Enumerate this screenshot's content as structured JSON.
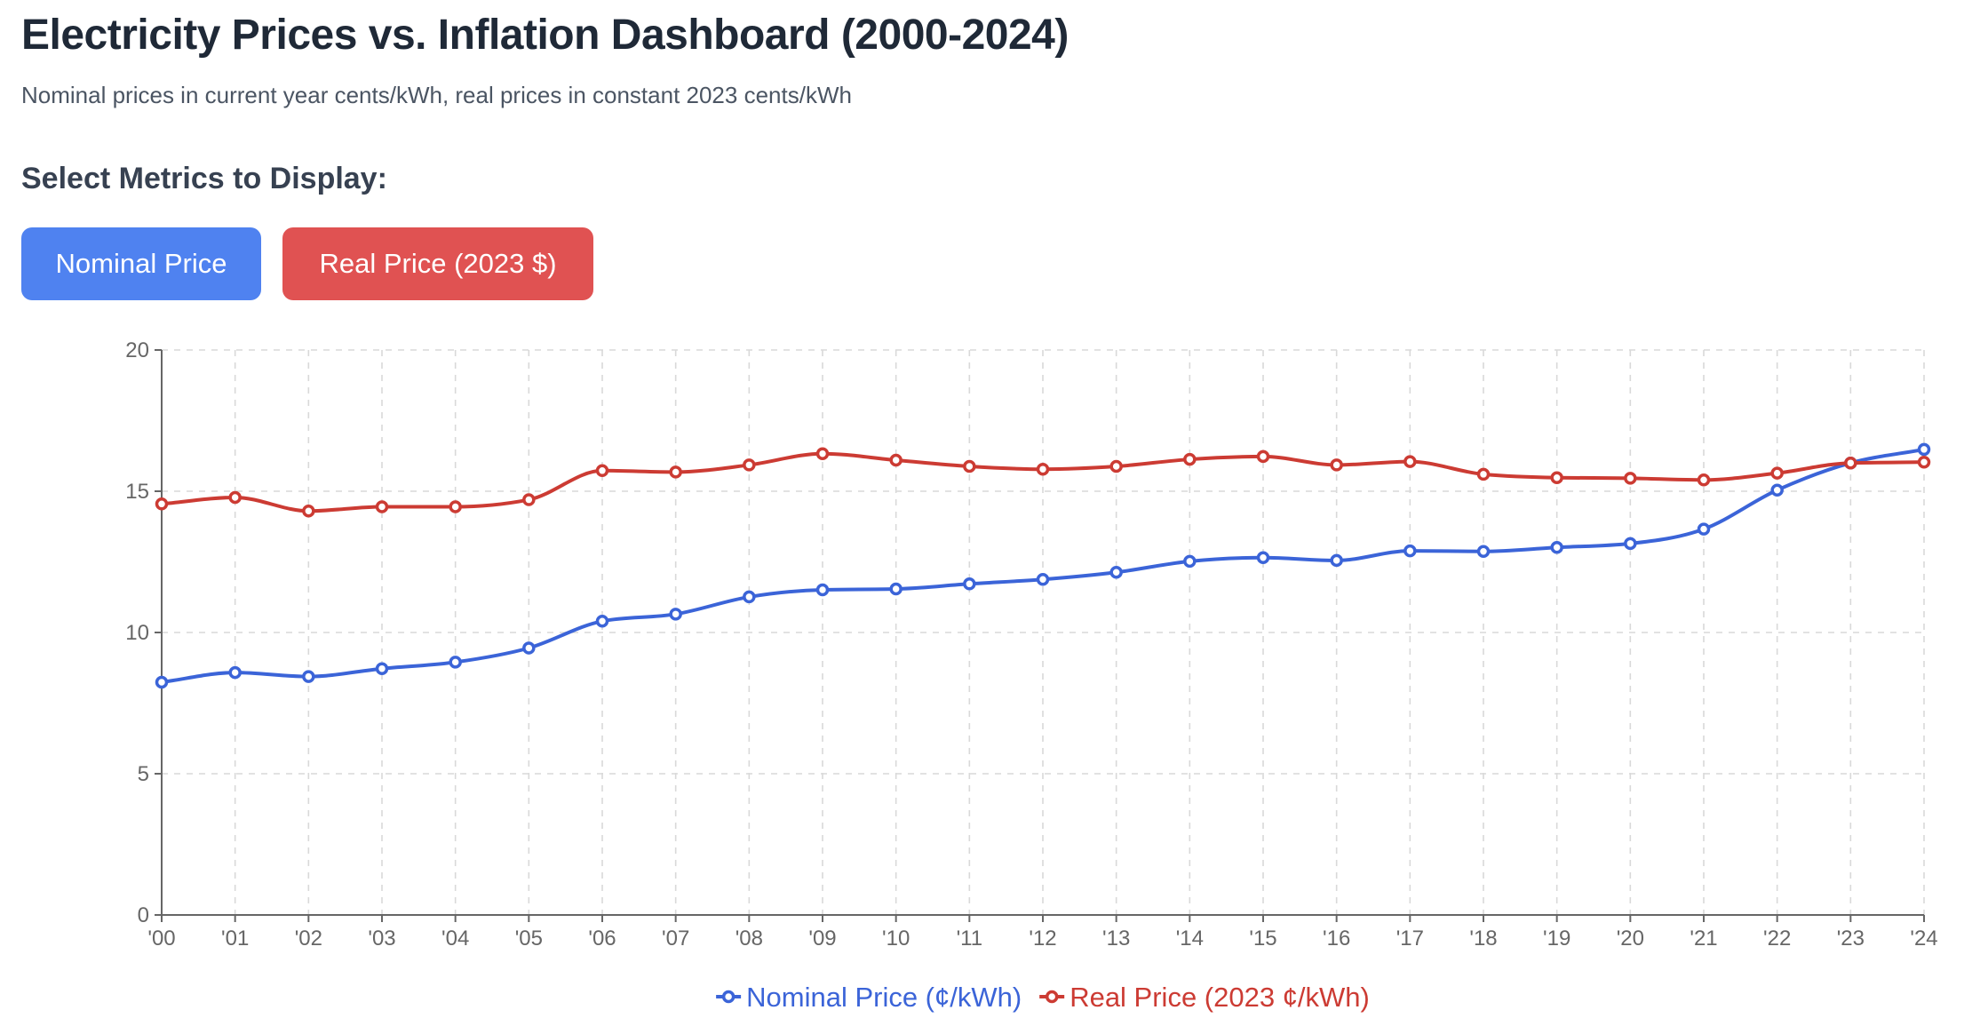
{
  "header": {
    "title": "Electricity Prices vs. Inflation Dashboard (2000-2024)",
    "subtitle": "Nominal prices in current year cents/kWh, real prices in constant 2023 cents/kWh"
  },
  "controls": {
    "heading": "Select Metrics to Display:",
    "buttons": [
      {
        "label": "Nominal Price",
        "color": "#4f82f0"
      },
      {
        "label": "Real Price (2023 $)",
        "color": "#e05252"
      }
    ]
  },
  "chart_data": {
    "type": "line",
    "categories": [
      "'00",
      "'01",
      "'02",
      "'03",
      "'04",
      "'05",
      "'06",
      "'07",
      "'08",
      "'09",
      "'10",
      "'11",
      "'12",
      "'13",
      "'14",
      "'15",
      "'16",
      "'17",
      "'18",
      "'19",
      "'20",
      "'21",
      "'22",
      "'23",
      "'24"
    ],
    "series": [
      {
        "name": "Nominal Price (¢/kWh)",
        "color": "#3b64d8",
        "values": [
          8.24,
          8.58,
          8.44,
          8.72,
          8.95,
          9.45,
          10.4,
          10.65,
          11.26,
          11.51,
          11.54,
          11.72,
          11.88,
          12.13,
          12.52,
          12.65,
          12.55,
          12.89,
          12.87,
          13.01,
          13.15,
          13.66,
          15.04,
          16.0,
          16.48
        ]
      },
      {
        "name": "Real Price (2023 ¢/kWh)",
        "color": "#cc3b33",
        "values": [
          14.55,
          14.78,
          14.3,
          14.45,
          14.45,
          14.7,
          15.73,
          15.68,
          15.93,
          16.33,
          16.1,
          15.88,
          15.78,
          15.88,
          16.13,
          16.23,
          15.93,
          16.05,
          15.6,
          15.48,
          15.46,
          15.4,
          15.64,
          16.0,
          16.03
        ]
      }
    ],
    "ylim": [
      0,
      20
    ],
    "yticks": [
      0,
      5,
      10,
      15,
      20
    ],
    "grid": true,
    "legend": "bottom-center"
  }
}
